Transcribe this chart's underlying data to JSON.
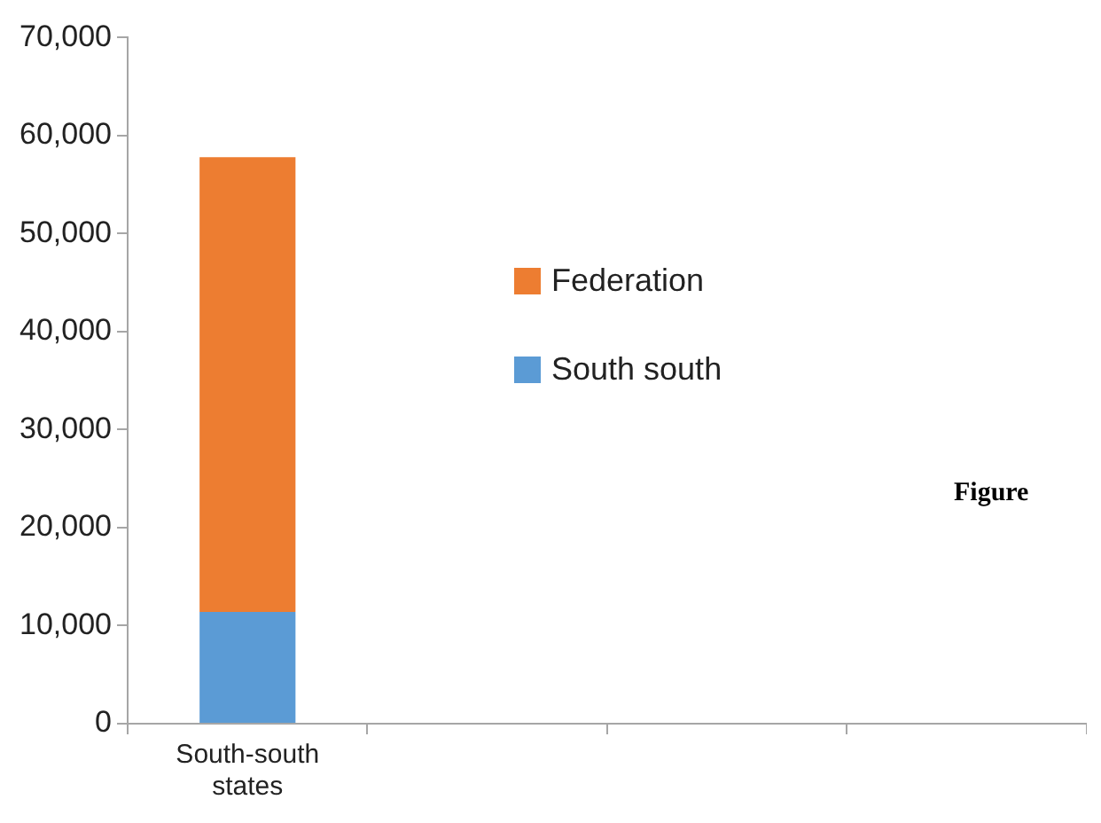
{
  "chart_data": {
    "type": "bar",
    "stacked": true,
    "categories": [
      "South-south states",
      null,
      null,
      null
    ],
    "series": [
      {
        "name": "South south",
        "color": "#5b9bd5",
        "values": [
          11400,
          null,
          null,
          null
        ]
      },
      {
        "name": "Federation",
        "color": "#ed7d31",
        "values": [
          46400,
          null,
          null,
          null
        ]
      }
    ],
    "ylim": [
      0,
      70000
    ],
    "yticks": [
      0,
      {
        "value": 10000,
        "label": "10,000"
      },
      {
        "value": 20000,
        "label": "20,000"
      },
      {
        "value": 30000,
        "label": "30,000"
      },
      {
        "value": 40000,
        "label": "40,000"
      },
      {
        "value": 50000,
        "label": "50,000"
      },
      {
        "value": 60000,
        "label": "60,000"
      },
      {
        "value": 70000,
        "label": "70,000"
      }
    ],
    "grid": false,
    "legend": "right",
    "annotations": [
      "Figure"
    ]
  }
}
